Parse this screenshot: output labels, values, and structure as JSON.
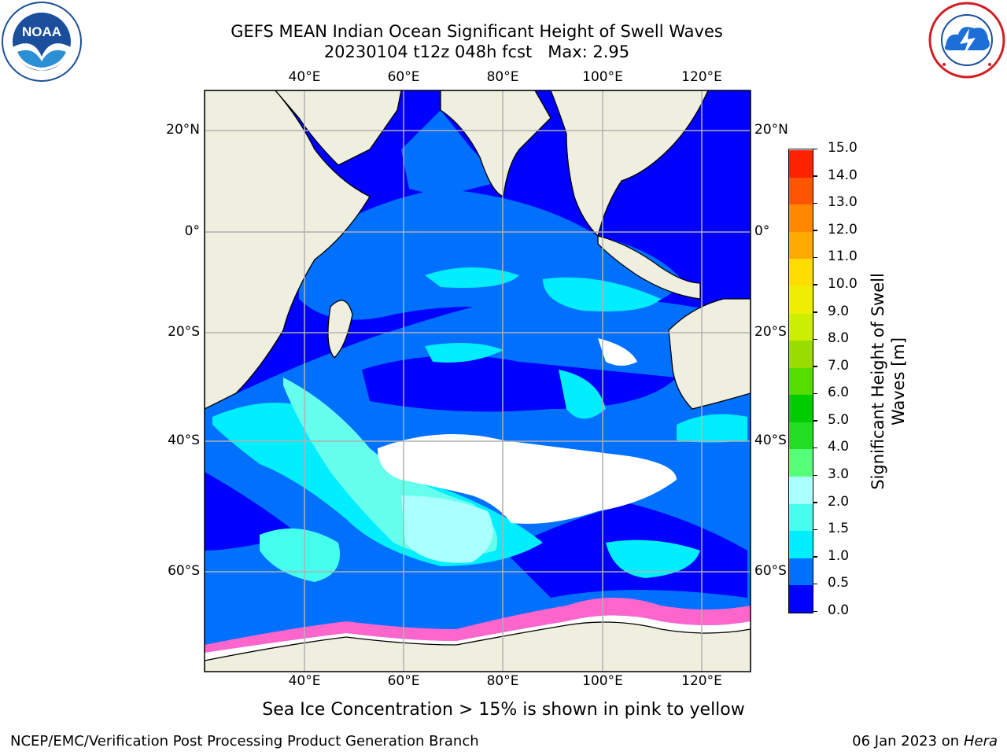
{
  "title": {
    "line1": "GEFS MEAN Indian Ocean Significant Height of Swell Waves",
    "line2": "20230104 t12z 048h fcst   Max: 2.95"
  },
  "logos": {
    "left": {
      "text": "NOAA",
      "icon": "noaa-logo"
    },
    "right": {
      "icon": "nws-logo"
    }
  },
  "map": {
    "lon_labels": [
      "40°E",
      "60°E",
      "80°E",
      "100°E",
      "120°E"
    ],
    "lat_labels": [
      "20°N",
      "0°",
      "20°S",
      "40°S",
      "60°S"
    ],
    "colors": {
      "land": "#efefe0",
      "ice_free_white": "#ffffff",
      "grid": "#b0b0b0"
    }
  },
  "colorbar": {
    "label_line1": "Significant Height of Swell",
    "label_line2": "Waves [m]",
    "ticks": [
      "0.0",
      "0.5",
      "1.0",
      "1.5",
      "2.0",
      "3.0",
      "4.0",
      "5.0",
      "6.0",
      "7.0",
      "8.0",
      "9.0",
      "10.0",
      "11.0",
      "12.0",
      "13.0",
      "14.0",
      "15.0"
    ],
    "colors": [
      "#0000ff",
      "#0070ff",
      "#00eeff",
      "#44ffee",
      "#aaffff",
      "#55ff77",
      "#22dd22",
      "#00cc00",
      "#55dd00",
      "#99dd00",
      "#ccee00",
      "#eeee00",
      "#ffdd00",
      "#ffaa00",
      "#ff8800",
      "#ff5500",
      "#ff2200"
    ]
  },
  "caption": "Sea Ice Concentration > 15% is shown in pink to yellow",
  "footer": {
    "left": "NCEP/EMC/Verification Post Processing Product Generation Branch",
    "right_prefix": "06 Jan 2023 on ",
    "right_machine": "Hera"
  }
}
